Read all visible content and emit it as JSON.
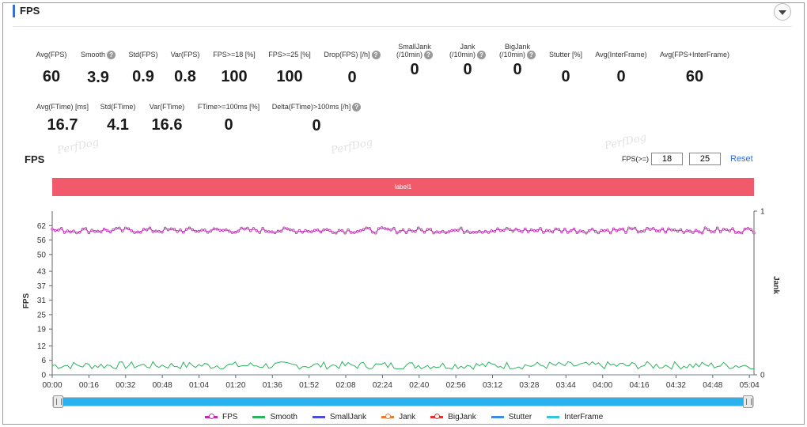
{
  "section": {
    "title": "FPS"
  },
  "metrics_row1": [
    {
      "label": "Avg(FPS)",
      "value": "60",
      "help": false
    },
    {
      "label": "Smooth",
      "value": "3.9",
      "help": true
    },
    {
      "label": "Std(FPS)",
      "value": "0.9",
      "help": false
    },
    {
      "label": "Var(FPS)",
      "value": "0.8",
      "help": false
    },
    {
      "label": "FPS>=18 [%]",
      "value": "100",
      "help": false
    },
    {
      "label": "FPS>=25 [%]",
      "value": "100",
      "help": false
    },
    {
      "label": "Drop(FPS) [/h]",
      "value": "0",
      "help": true
    },
    {
      "label": "SmallJank",
      "label2": "(/10min)",
      "value": "0",
      "help": true
    },
    {
      "label": "Jank",
      "label2": "(/10min)",
      "value": "0",
      "help": true
    },
    {
      "label": "BigJank",
      "label2": "(/10min)",
      "value": "0",
      "help": true
    },
    {
      "label": "Stutter [%]",
      "value": "0",
      "help": false
    },
    {
      "label": "Avg(InterFrame)",
      "value": "0",
      "help": false
    },
    {
      "label": "Avg(FPS+InterFrame)",
      "value": "60",
      "help": false
    }
  ],
  "metrics_row2": [
    {
      "label": "Avg(FTime) [ms]",
      "value": "16.7",
      "help": false
    },
    {
      "label": "Std(FTime)",
      "value": "4.1",
      "help": false
    },
    {
      "label": "Var(FTime)",
      "value": "16.6",
      "help": false
    },
    {
      "label": "FTime>=100ms [%]",
      "value": "0",
      "help": false
    },
    {
      "label": "Delta(FTime)>100ms [/h]",
      "value": "0",
      "help": true
    }
  ],
  "watermark": "PerfDog",
  "chart_header": {
    "title": "FPS",
    "threshold_label": "FPS(>=)",
    "threshold_1": "18",
    "threshold_2": "25",
    "reset_label": "Reset"
  },
  "label_bar": {
    "text": "label1"
  },
  "chart_data": {
    "type": "line",
    "x_ticks": [
      "00:00",
      "00:16",
      "00:32",
      "00:48",
      "01:04",
      "01:20",
      "01:36",
      "01:52",
      "02:08",
      "02:24",
      "02:40",
      "02:56",
      "03:12",
      "03:28",
      "03:44",
      "04:00",
      "04:16",
      "04:32",
      "04:48",
      "05:04"
    ],
    "xlim_seconds": [
      0,
      306
    ],
    "y_ticks": [
      0,
      6,
      12,
      19,
      25,
      31,
      37,
      43,
      50,
      56,
      62
    ],
    "ylim": [
      0,
      68
    ],
    "ylabel": "FPS",
    "y2label": "Jank",
    "y2_ticks": [
      0,
      1
    ],
    "y2lim": [
      0,
      1
    ],
    "series": [
      {
        "name": "FPS",
        "color": "#c02bb2",
        "marker": "circle",
        "mean": 60,
        "amplitude": 1.1
      },
      {
        "name": "Smooth",
        "color": "#2db35d",
        "marker": "none",
        "mean": 3.9,
        "amplitude": 1.6
      },
      {
        "name": "SmallJank",
        "color": "#4b4bdc",
        "marker": "none",
        "constant": 0
      },
      {
        "name": "Jank",
        "color": "#f07a2c",
        "marker": "circle",
        "constant": 0
      },
      {
        "name": "BigJank",
        "color": "#e63030",
        "marker": "circle",
        "constant": 0
      },
      {
        "name": "Stutter",
        "color": "#3a8ee8",
        "marker": "none",
        "constant": 0
      },
      {
        "name": "InterFrame",
        "color": "#34c4e0",
        "marker": "none",
        "constant": 0
      }
    ]
  },
  "scrollbar": {
    "fill_fraction_start": 0,
    "fill_fraction_end": 1
  }
}
